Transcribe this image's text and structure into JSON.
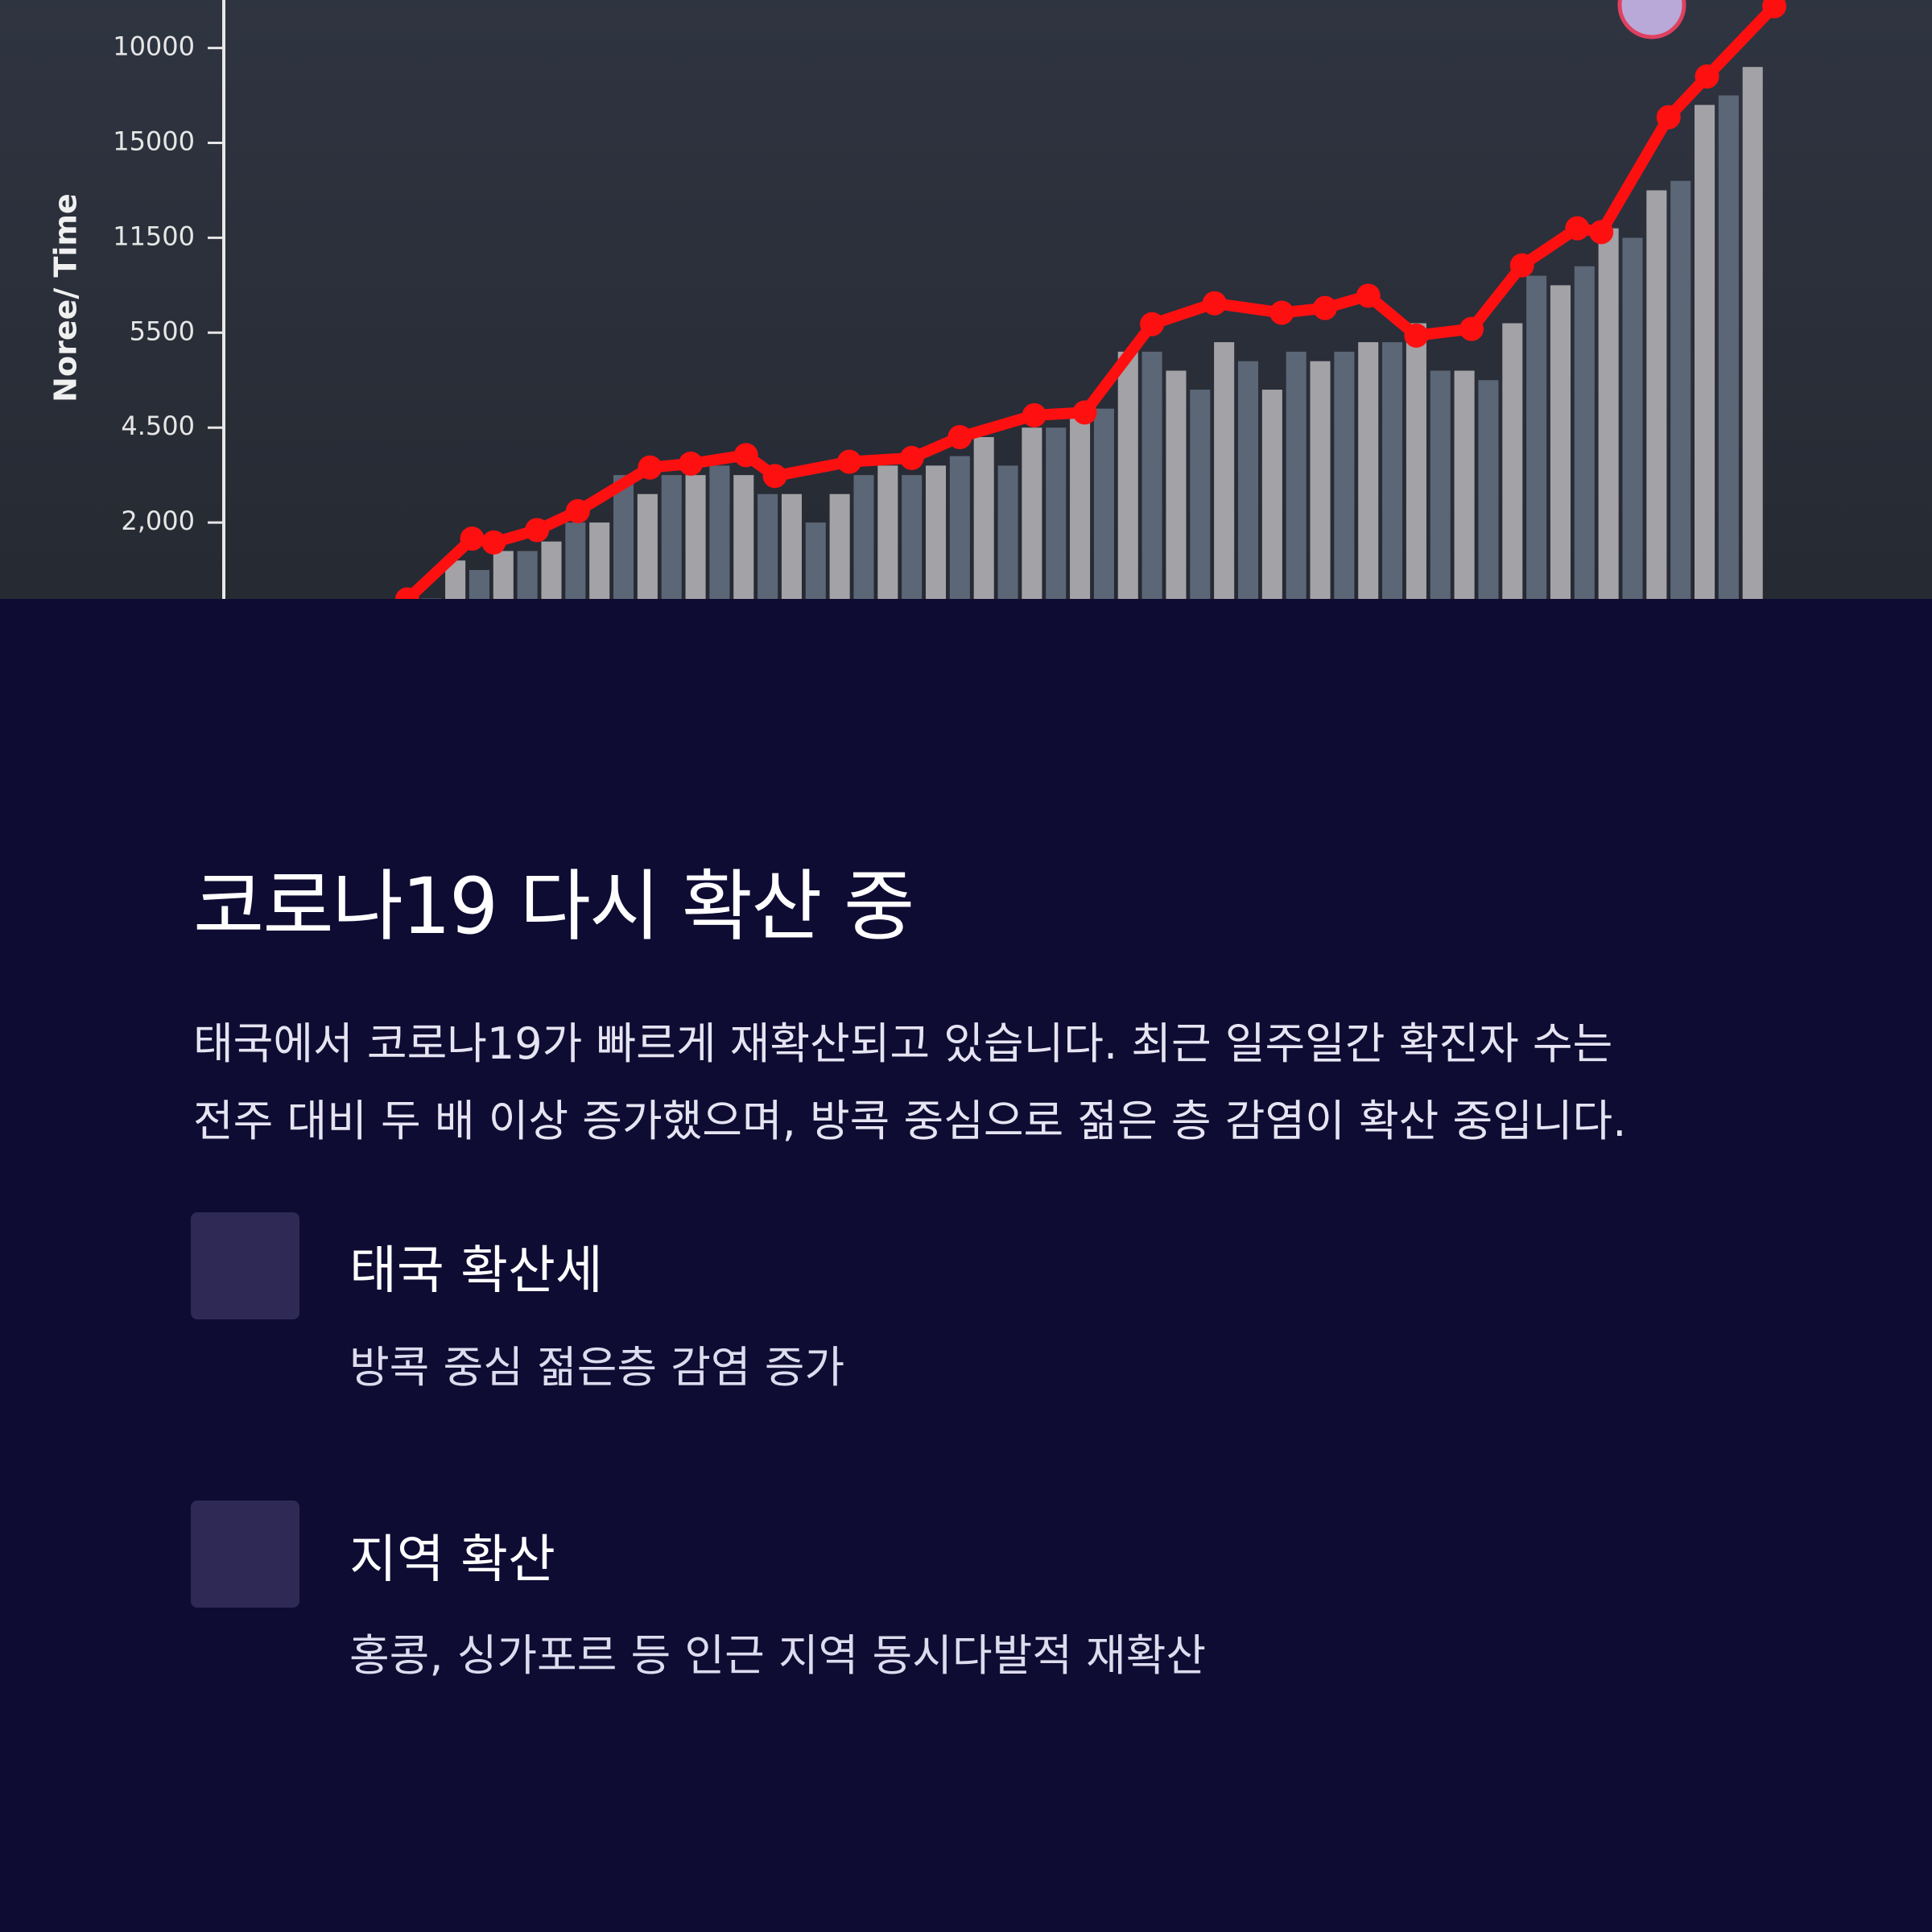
{
  "chart_data": {
    "type": "bar",
    "y_label": "Noree/ Time",
    "ylim": [
      0,
      6.5
    ],
    "yticks": [
      {
        "value": 1,
        "label": "2,000"
      },
      {
        "value": 2,
        "label": "4.500"
      },
      {
        "value": 3,
        "label": "5500"
      },
      {
        "value": 4,
        "label": "11500"
      },
      {
        "value": 5,
        "label": "15000"
      },
      {
        "value": 6,
        "label": "10000"
      }
    ],
    "xlim": [
      -1.5,
      56.5
    ],
    "colors": [
      "#5b6676",
      "#a3a2a6"
    ],
    "values": [
      0.2,
      0.6,
      0.5,
      0.7,
      0.7,
      0.8,
      1.0,
      1.0,
      1.5,
      1.3,
      1.5,
      1.5,
      1.6,
      1.5,
      1.3,
      1.3,
      1.0,
      1.3,
      1.5,
      1.6,
      1.5,
      1.6,
      1.7,
      1.9,
      1.6,
      2.0,
      2.0,
      2.1,
      2.2,
      2.8,
      2.8,
      2.6,
      2.4,
      2.9,
      2.7,
      2.4,
      2.8,
      2.7,
      2.8,
      2.9,
      2.9,
      3.1,
      2.6,
      2.6,
      2.5,
      3.1,
      3.6,
      3.5,
      3.7,
      4.1,
      4.0,
      4.5,
      4.6,
      5.4,
      5.5,
      5.8
    ],
    "series": [
      {
        "color": "#ff1010",
        "x": [
          -1.0,
          1.7,
          2.6,
          4.4,
          6.1,
          9.1,
          10.8,
          13.1,
          14.3,
          17.4,
          20.0,
          22.0,
          25.1,
          27.2,
          30.0,
          32.6,
          35.4,
          37.2,
          39.0,
          41.0,
          43.3,
          45.4,
          47.7,
          48.7,
          51.5,
          53.1,
          55.9
        ],
        "values": [
          0.19,
          0.83,
          0.79,
          0.92,
          1.12,
          1.58,
          1.62,
          1.71,
          1.49,
          1.64,
          1.68,
          1.9,
          2.13,
          2.16,
          3.09,
          3.31,
          3.21,
          3.26,
          3.39,
          2.97,
          3.04,
          3.71,
          4.1,
          4.06,
          5.27,
          5.7,
          6.44
        ]
      }
    ]
  },
  "card": {
    "title": "코로나19 다시 확산 중",
    "description": [
      "태국에서 코로나19가 빠르게 재확산되고 있습니다. 최근 일주일간 확진자 수는",
      "전주 대비 두 배 이상 증가했으며, 방콕 중심으로 젊은 층 감염이 확산 중입니다."
    ],
    "items": [
      {
        "title": "태국 확산세",
        "text": "방콕 중심 젊은층 감염 증가"
      },
      {
        "title": "지역 확산",
        "text": "홍콩, 싱가포르 등 인근 지역 동시다발적 재확산"
      }
    ]
  }
}
